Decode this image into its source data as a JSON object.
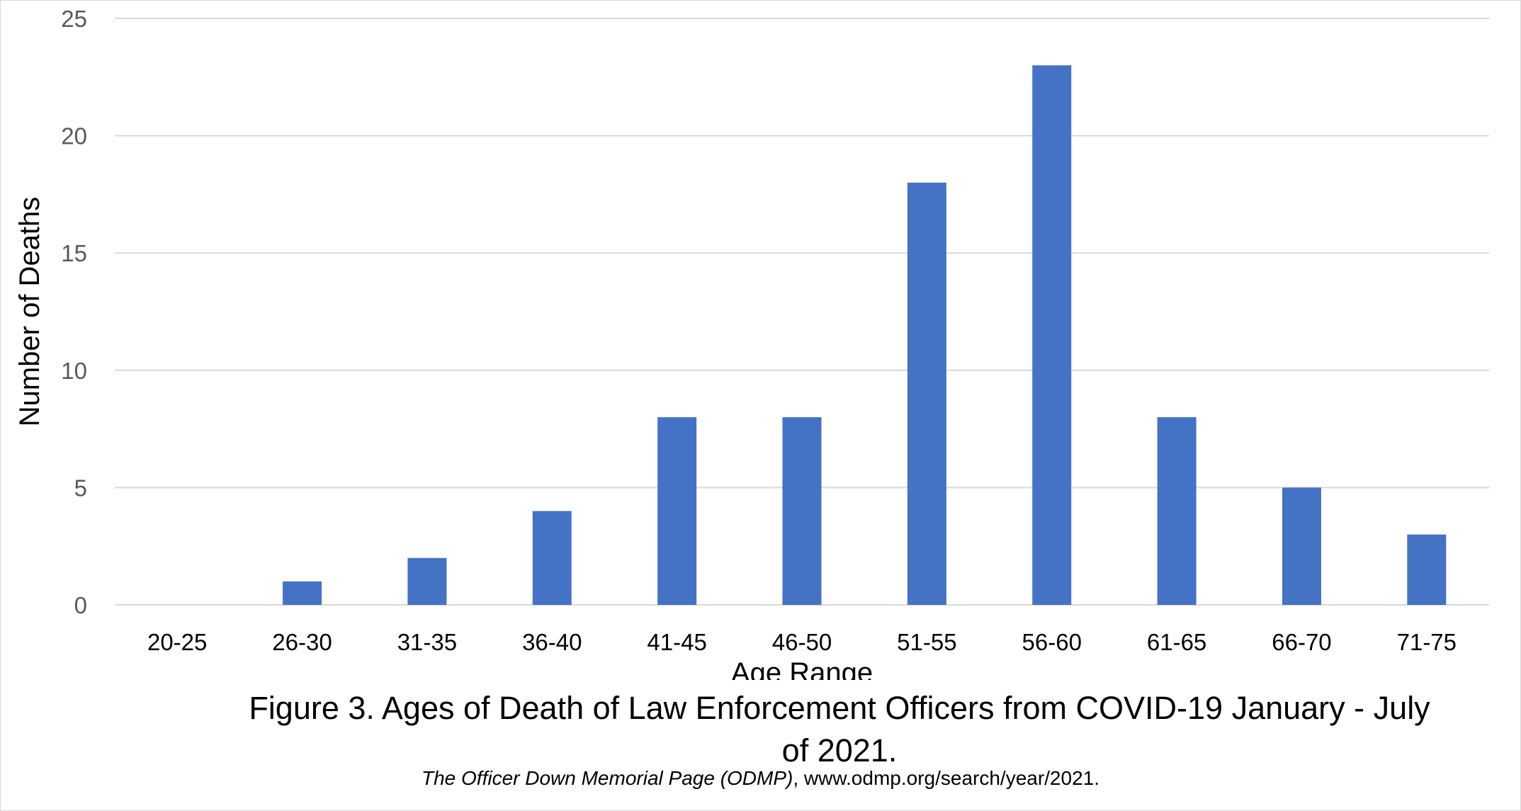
{
  "chart_data": {
    "type": "bar",
    "categories": [
      "20-25",
      "26-30",
      "31-35",
      "36-40",
      "41-45",
      "46-50",
      "51-55",
      "56-60",
      "61-65",
      "66-70",
      "71-75"
    ],
    "series": [
      {
        "values": [
          0,
          1,
          2,
          4,
          8,
          8,
          18,
          23,
          8,
          5,
          3
        ]
      }
    ],
    "xlabel": "Age Range",
    "ylabel": "Number of Deaths",
    "ylim": [
      0,
      25
    ],
    "yticks": [
      0,
      5,
      10,
      15,
      20,
      25
    ],
    "grid": true,
    "legend": "none",
    "bar_color": "#4472C4",
    "gridline_color": "#d9d9d9"
  },
  "caption": "Figure 3. Ages of Death of Law Enforcement Officers from COVID-19 January - July of 2021.",
  "source": {
    "title": "The Officer Down Memorial Page (ODMP)",
    "rest": ", www.odmp.org/search/year/2021."
  }
}
